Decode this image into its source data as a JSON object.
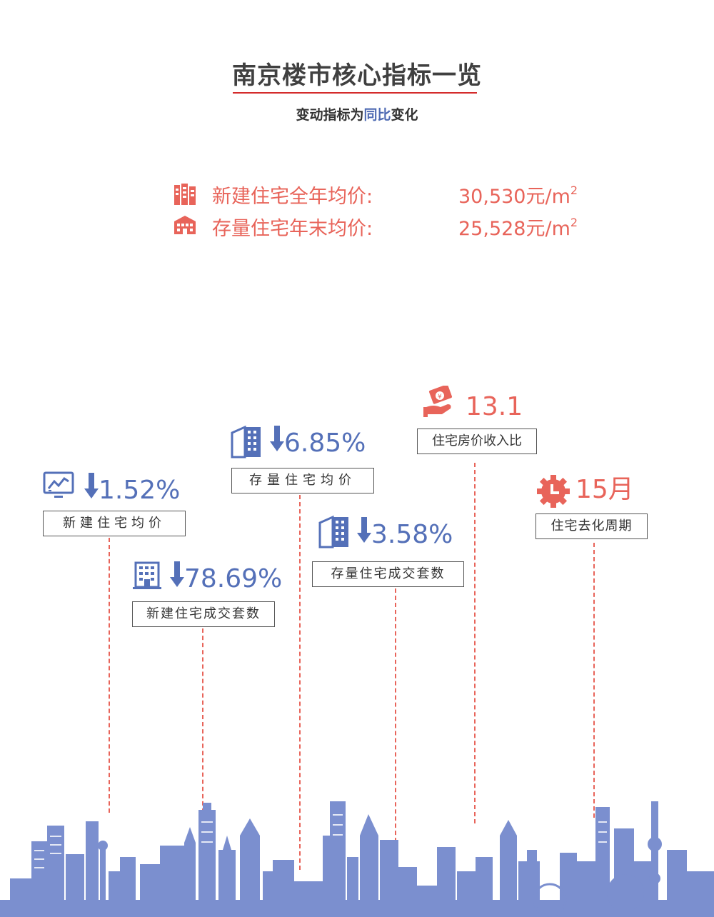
{
  "header": {
    "title": "南京楼市核心指标一览",
    "subtitle_pre": "变动指标为",
    "subtitle_highlight": "同比",
    "subtitle_post": "变化"
  },
  "prices": [
    {
      "label": "新建住宅全年均价:",
      "value": "30,530元/m",
      "unit_sup": "2",
      "icon": "building-icon"
    },
    {
      "label": "存量住宅年末均价:",
      "value": "25,528元/m",
      "unit_sup": "2",
      "icon": "house-icon"
    }
  ],
  "metrics": [
    {
      "name": "新建住宅均价",
      "value": "1.52%",
      "direction": "down",
      "icon": "chart-monitor-icon"
    },
    {
      "name": "新建住宅成交套数",
      "value": "78.69%",
      "direction": "down",
      "icon": "office-building-icon"
    },
    {
      "name": "存量住宅均价",
      "value": "6.85%",
      "direction": "down",
      "icon": "tower-block-icon"
    },
    {
      "name": "存量住宅成交套数",
      "value": "3.58%",
      "direction": "down",
      "icon": "tower-block-icon"
    },
    {
      "name": "住宅房价收入比",
      "value": "13.1",
      "direction": "none",
      "icon": "money-hand-icon"
    },
    {
      "name": "住宅去化周期",
      "value": "15月",
      "direction": "none",
      "icon": "clock-gear-icon"
    }
  ],
  "colors": {
    "accent_red": "#e8645a",
    "accent_blue": "#5470b8",
    "title_rule": "#d42b2b",
    "skyline": "#7b8fcf"
  }
}
